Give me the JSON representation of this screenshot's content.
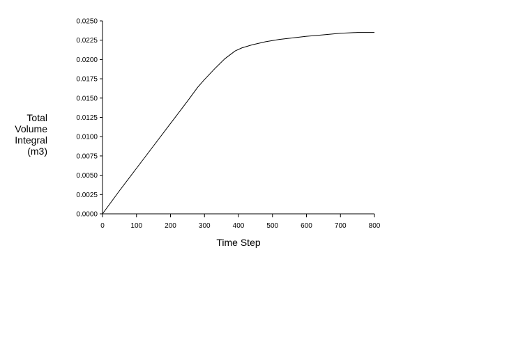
{
  "chart_data": {
    "type": "line",
    "title": "",
    "xlabel": "Time Step",
    "ylabel": [
      "Total",
      "Volume",
      "Integral",
      "(m3)"
    ],
    "xlim": [
      0,
      800
    ],
    "ylim": [
      0,
      0.025
    ],
    "x_ticks": [
      "0",
      "100",
      "200",
      "300",
      "400",
      "500",
      "600",
      "700",
      "800"
    ],
    "y_ticks": [
      "0.0000",
      "0.0025",
      "0.0050",
      "0.0075",
      "0.0100",
      "0.0125",
      "0.0150",
      "0.0175",
      "0.0200",
      "0.0225",
      "0.0250"
    ],
    "grid": false,
    "legend": "none",
    "series": [
      {
        "x": [
          0,
          50,
          100,
          150,
          200,
          250,
          280,
          300,
          330,
          360,
          390,
          410,
          440,
          480,
          520,
          560,
          600,
          650,
          700,
          750,
          800
        ],
        "y": [
          0,
          0.003,
          0.0059,
          0.0088,
          0.0117,
          0.0146,
          0.0164,
          0.0174,
          0.0188,
          0.0201,
          0.0211,
          0.0215,
          0.0219,
          0.0223,
          0.0226,
          0.0228,
          0.023,
          0.0232,
          0.0234,
          0.0235,
          0.0235
        ]
      }
    ]
  }
}
